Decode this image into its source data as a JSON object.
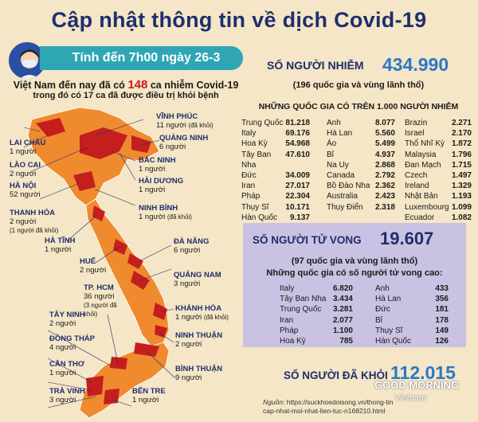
{
  "header": {
    "title": "Cập nhật thông tin về dịch Covid-19",
    "date_ribbon": "Tính đến 7h00 ngày 26-3",
    "vn_line_prefix": "Việt Nam đến nay đã có",
    "vn_cases": "148",
    "vn_line_suffix": "ca nhiễm Covid-19",
    "vn_line2": "trong đó có 17 ca đã được điều trị khỏi bệnh"
  },
  "provinces": [
    {
      "name": "VĨNH PHÚC",
      "count": "11 người",
      "note": "(đã khỏi)"
    },
    {
      "name": "QUẢNG NINH",
      "count": "6 người",
      "note": ""
    },
    {
      "name": "LAI CHÂU",
      "count": "1 người",
      "note": ""
    },
    {
      "name": "LÀO CAI",
      "count": "2 người",
      "note": ""
    },
    {
      "name": "HÀ NỘI",
      "count": "52 người",
      "note": ""
    },
    {
      "name": "BẮC NINH",
      "count": "1 người",
      "note": ""
    },
    {
      "name": "HẢI DƯƠNG",
      "count": "1 người",
      "note": ""
    },
    {
      "name": "THANH HÓA",
      "count": "2 người",
      "note": "(1 người đã khỏi)"
    },
    {
      "name": "NINH BÌNH",
      "count": "1 người",
      "note": "(đã khỏi)"
    },
    {
      "name": "HÀ TĨNH",
      "count": "1 người",
      "note": ""
    },
    {
      "name": "ĐÀ NẴNG",
      "count": "6 người",
      "note": ""
    },
    {
      "name": "HUẾ",
      "count": "2 người",
      "note": ""
    },
    {
      "name": "QUẢNG NAM",
      "count": "3 người",
      "note": ""
    },
    {
      "name": "TP. HCM",
      "count": "36 người",
      "note": "(3 người đã khỏi)"
    },
    {
      "name": "KHÁNH HÒA",
      "count": "1 người",
      "note": "(đã khỏi)"
    },
    {
      "name": "TÂY NINH",
      "count": "2 người",
      "note": ""
    },
    {
      "name": "ĐỒNG THÁP",
      "count": "4 người",
      "note": ""
    },
    {
      "name": "NINH THUẬN",
      "count": "2 người",
      "note": ""
    },
    {
      "name": "CẦN THƠ",
      "count": "1 người",
      "note": ""
    },
    {
      "name": "BÌNH THUẬN",
      "count": "9 người",
      "note": ""
    },
    {
      "name": "TRÀ VINH",
      "count": "3 người",
      "note": ""
    },
    {
      "name": "BẾN TRE",
      "count": "1 người",
      "note": ""
    }
  ],
  "infections": {
    "heading": "SỐ NGƯỜI NHIỄM",
    "total": "434.990",
    "subtitle": "(196 quốc gia và vùng lãnh thổ)",
    "table_heading": "NHỮNG QUỐC GIA CÓ TRÊN 1.000 NGƯỜI NHIỄM",
    "columns": [
      [
        {
          "country": "Trung Quốc",
          "value": "81.218"
        },
        {
          "country": "Italy",
          "value": "69.176"
        },
        {
          "country": "Hoa Kỳ",
          "value": "54.968"
        },
        {
          "country": "Tây Ban Nha",
          "value": "47.610"
        },
        {
          "country": "Đức",
          "value": "34.009"
        },
        {
          "country": "Iran",
          "value": "27.017"
        },
        {
          "country": "Pháp",
          "value": "22.304"
        },
        {
          "country": "Thụy Sĩ",
          "value": "10.171"
        },
        {
          "country": "Hàn Quốc",
          "value": "9.137"
        }
      ],
      [
        {
          "country": "Anh",
          "value": "8.077"
        },
        {
          "country": "Hà Lan",
          "value": "5.560"
        },
        {
          "country": "Áo",
          "value": "5.499"
        },
        {
          "country": "Bỉ",
          "value": "4.937"
        },
        {
          "country": "Na Uy",
          "value": "2.868"
        },
        {
          "country": "Canada",
          "value": "2.792"
        },
        {
          "country": "Bồ Đào Nha",
          "value": "2.362"
        },
        {
          "country": "Australia",
          "value": "2.423"
        },
        {
          "country": "Thụy Điển",
          "value": "2.318"
        }
      ],
      [
        {
          "country": "Brazin",
          "value": "2.271"
        },
        {
          "country": "Israel",
          "value": "2.170"
        },
        {
          "country": "Thổ Nhĩ Kỳ",
          "value": "1.872"
        },
        {
          "country": "Malaysia",
          "value": "1.796"
        },
        {
          "country": "Đan Mạch",
          "value": "1.715"
        },
        {
          "country": "Czech",
          "value": "1.497"
        },
        {
          "country": "Ireland",
          "value": "1.329"
        },
        {
          "country": "Nhật Bản",
          "value": "1.193"
        },
        {
          "country": "Luxembourg",
          "value": "1.099"
        },
        {
          "country": "Ecuador",
          "value": "1.082"
        }
      ]
    ]
  },
  "deaths": {
    "heading": "SỐ NGƯỜI TỬ VONG",
    "total": "19.607",
    "subtitle": "(97 quốc gia và vùng lãnh thổ)",
    "table_heading": "Những quốc gia có số người tử vong cao:",
    "columns": [
      [
        {
          "country": "Italy",
          "value": "6.820"
        },
        {
          "country": "Tây Ban Nha",
          "value": "3.434"
        },
        {
          "country": "Trung Quốc",
          "value": "3.281"
        },
        {
          "country": "Iran",
          "value": "2.077"
        },
        {
          "country": "Pháp",
          "value": "1.100"
        },
        {
          "country": "Hoa Kỳ",
          "value": "785"
        }
      ],
      [
        {
          "country": "Anh",
          "value": "433"
        },
        {
          "country": "Hà Lan",
          "value": "356"
        },
        {
          "country": "Đức",
          "value": "181"
        },
        {
          "country": "Bỉ",
          "value": "178"
        },
        {
          "country": "Thụy Sĩ",
          "value": "149"
        },
        {
          "country": "Hàn Quốc",
          "value": "126"
        }
      ]
    ]
  },
  "recovered": {
    "heading": "SỐ NGƯỜI ĐÃ KHỎI",
    "total": "112.015"
  },
  "source": {
    "label": "Nguồn",
    "line1": "https://suckhoedoisong.vn/thong-tin",
    "line2": "cap-nhat-moi-nhat-lien-tuc-n168210.html"
  },
  "brand": {
    "line1": "GOOD MORNING",
    "line2": "Vietnam"
  },
  "colors": {
    "background": "#f4e6c6",
    "title": "#1f2e6e",
    "ribbon": "#2ea6b3",
    "accent_red": "#c41e1e",
    "number_blue": "#2b78c8",
    "death_box": "#c9c2e3",
    "map_orange": "#f08a2e",
    "map_red": "#c41e1e"
  }
}
